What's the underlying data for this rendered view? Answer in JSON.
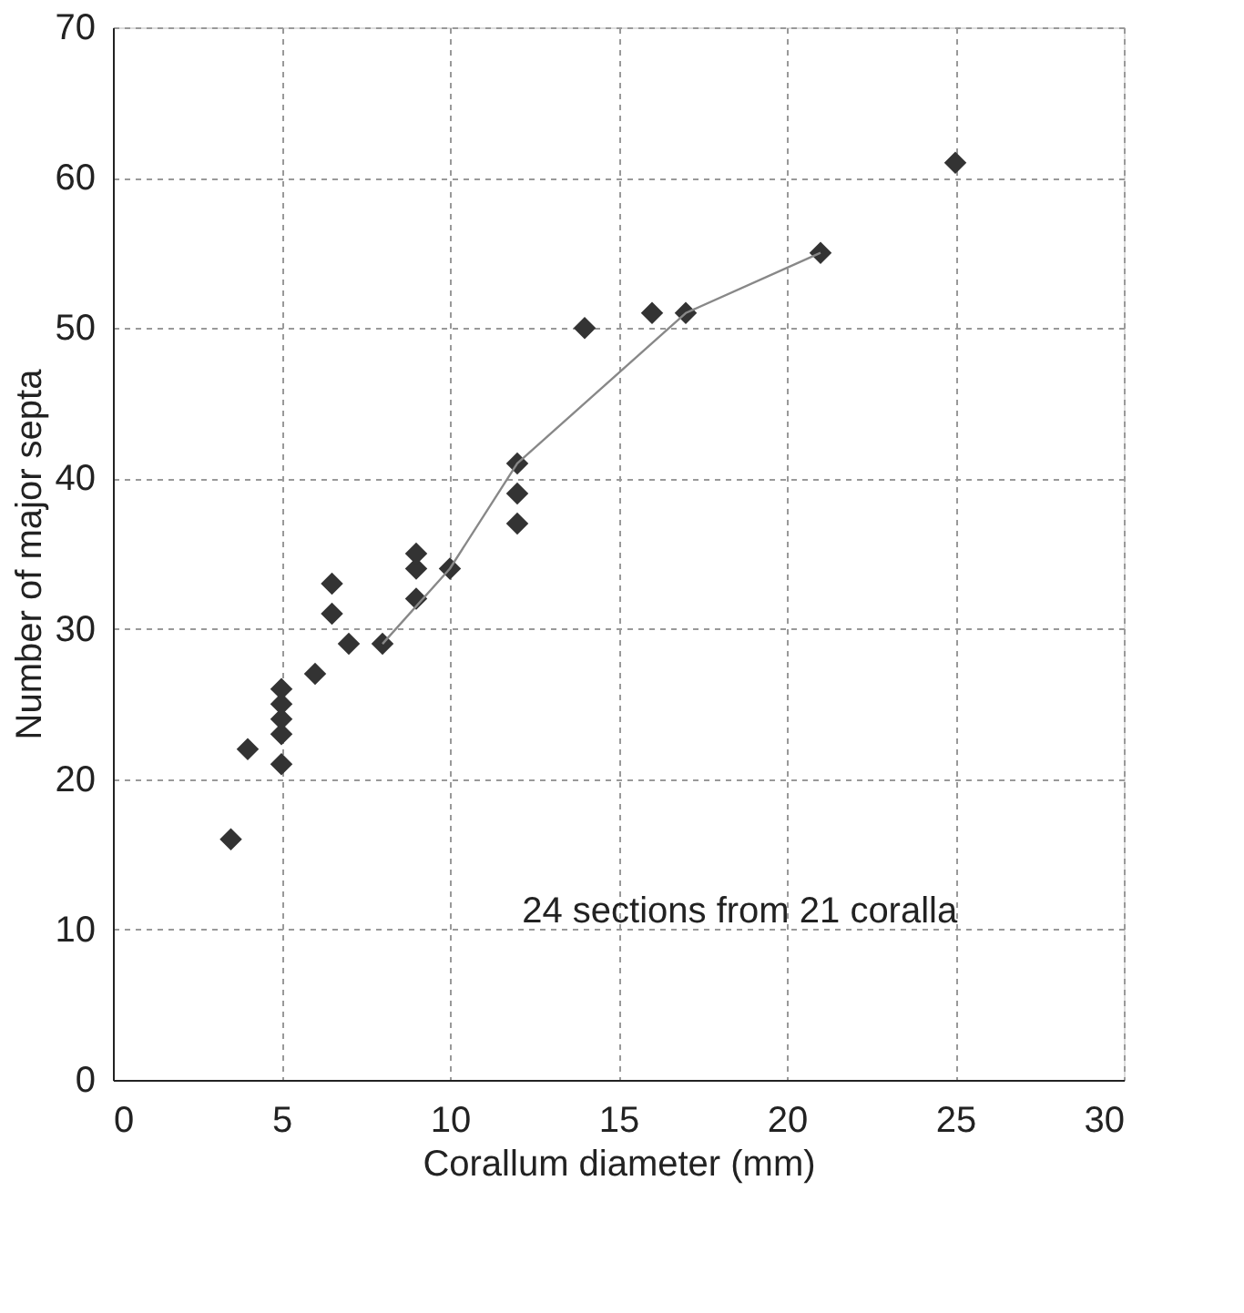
{
  "chart_data": {
    "type": "scatter",
    "xlabel": "Corallum diameter (mm)",
    "ylabel": "Number of major septa",
    "xlim": [
      0,
      30
    ],
    "xticks": [
      0,
      5,
      10,
      15,
      20,
      25,
      30
    ],
    "ylim": [
      0,
      70
    ],
    "yticks": [
      0,
      10,
      20,
      30,
      40,
      50,
      60,
      70
    ],
    "grid": true,
    "marker": "diamond",
    "annotations": [
      "24 sections from 21 coralla"
    ],
    "series": [
      {
        "color": "#333333",
        "x": [
          3.5,
          4,
          5,
          5,
          5,
          5,
          5,
          6,
          6.5,
          6.5,
          7,
          8,
          9,
          9,
          9,
          10,
          12,
          12,
          12,
          14,
          16,
          17,
          21,
          25
        ],
        "values": [
          16,
          22,
          21,
          23,
          24,
          25,
          26,
          27,
          31,
          33,
          29,
          29,
          32,
          34,
          35,
          34,
          37,
          39,
          41,
          50,
          51,
          51,
          55,
          61
        ]
      },
      {
        "type": "line",
        "color": "#888888",
        "line_style": "solid",
        "marker": "none",
        "x": [
          8,
          10,
          12,
          17,
          21
        ],
        "values": [
          29,
          34,
          41,
          51,
          55
        ]
      }
    ]
  }
}
